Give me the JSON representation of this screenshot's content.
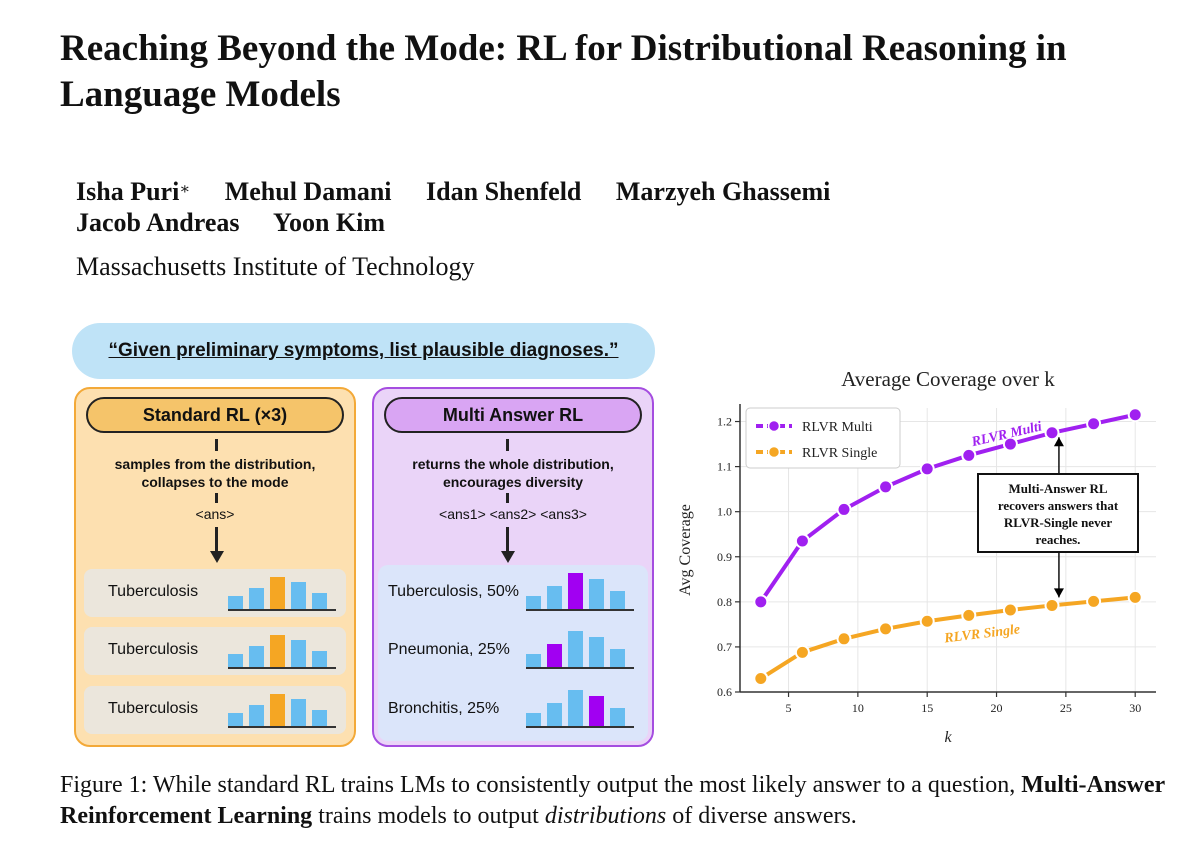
{
  "paper": {
    "title": "Reaching Beyond the Mode: RL for Distributional Reasoning in Language Models",
    "authors_row1": [
      "Isha Puri",
      "Mehul Damani",
      "Idan Shenfeld",
      "Marzyeh Ghassemi"
    ],
    "authors_row2": [
      "Jacob Andreas",
      "Yoon Kim"
    ],
    "first_author_mark": "∗",
    "affiliation": "Massachusetts Institute of Technology"
  },
  "figure": {
    "prompt": "“Given preliminary symptoms, list plausible diagnoses.”",
    "standard": {
      "title": "Standard RL (×3)",
      "desc_line1": "samples from the distribution,",
      "desc_line2": "collapses to the mode",
      "answer": "<ans>",
      "rows": [
        {
          "label": "Tuberculosis",
          "bars": [
            0.35,
            0.55,
            0.85,
            0.72,
            0.42
          ],
          "highlight": 2
        },
        {
          "label": "Tuberculosis",
          "bars": [
            0.35,
            0.55,
            0.85,
            0.72,
            0.42
          ],
          "highlight": 2
        },
        {
          "label": "Tuberculosis",
          "bars": [
            0.35,
            0.55,
            0.85,
            0.72,
            0.42
          ],
          "highlight": 2
        }
      ]
    },
    "multi": {
      "title": "Multi Answer RL",
      "desc_line1": "returns the whole distribution,",
      "desc_line2": "encourages diversity",
      "answer": "<ans1> <ans2> <ans3>",
      "rows": [
        {
          "label": "Tuberculosis, 50%",
          "bars": [
            0.35,
            0.6,
            0.95,
            0.78,
            0.48
          ],
          "highlight": 2
        },
        {
          "label": "Pneumonia, 25%",
          "bars": [
            0.35,
            0.6,
            0.95,
            0.78,
            0.48
          ],
          "highlight": 1
        },
        {
          "label": "Bronchitis, 25%",
          "bars": [
            0.35,
            0.6,
            0.95,
            0.78,
            0.48
          ],
          "highlight": 3
        }
      ]
    },
    "caption_prefix": "Figure 1: While standard RL trains LMs to consistently output the most likely answer to a question,",
    "caption_bold": "Multi-Answer Reinforcement Learning",
    "caption_mid": "trains models to output",
    "caption_italic": "distributions",
    "caption_end": "of diverse answers."
  },
  "colors": {
    "orange": "#f5a623",
    "purple": "#a100f2",
    "bar_blue": "#67bdf0",
    "chart_purple": "#a020f0",
    "chart_orange": "#f5a623"
  },
  "chart_data": {
    "type": "line",
    "title": "Average Coverage over k",
    "xlabel": "k",
    "ylabel": "Avg Coverage",
    "xlim": [
      1.5,
      31.5
    ],
    "ylim": [
      0.6,
      1.23
    ],
    "xticks": [
      5,
      10,
      15,
      20,
      25,
      30
    ],
    "yticks": [
      0.6,
      0.7,
      0.8,
      0.9,
      1.0,
      1.1,
      1.2
    ],
    "x": [
      3,
      6,
      9,
      12,
      15,
      18,
      21,
      24,
      27,
      30
    ],
    "series": [
      {
        "name": "RLVR Multi",
        "values": [
          0.8,
          0.935,
          1.005,
          1.055,
          1.095,
          1.125,
          1.15,
          1.175,
          1.195,
          1.215
        ]
      },
      {
        "name": "RLVR Single",
        "values": [
          0.63,
          0.688,
          0.718,
          0.74,
          0.757,
          0.77,
          0.782,
          0.792,
          0.801,
          0.81
        ]
      }
    ],
    "legend_position": "top-left",
    "label_multi": "RLVR Multi",
    "label_single": "RLVR Single",
    "annotation": [
      "Multi-Answer RL",
      "recovers answers that",
      "RLVR-Single never",
      "reaches."
    ]
  }
}
